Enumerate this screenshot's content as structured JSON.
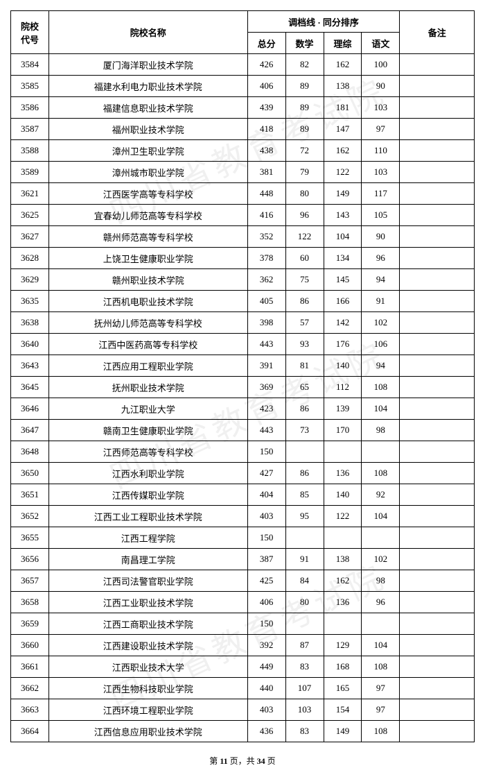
{
  "header": {
    "code": "院校\n代号",
    "name": "院校名称",
    "scoreGroup": "调档线 · 同分排序",
    "total": "总分",
    "math": "数学",
    "sci": "理综",
    "chinese": "语文",
    "remark": "备注"
  },
  "rows": [
    {
      "code": "3584",
      "name": "厦门海洋职业技术学院",
      "total": "426",
      "math": "82",
      "sci": "162",
      "chinese": "100",
      "remark": ""
    },
    {
      "code": "3585",
      "name": "福建水利电力职业技术学院",
      "total": "406",
      "math": "89",
      "sci": "138",
      "chinese": "90",
      "remark": ""
    },
    {
      "code": "3586",
      "name": "福建信息职业技术学院",
      "total": "439",
      "math": "89",
      "sci": "181",
      "chinese": "103",
      "remark": ""
    },
    {
      "code": "3587",
      "name": "福州职业技术学院",
      "total": "418",
      "math": "89",
      "sci": "147",
      "chinese": "97",
      "remark": ""
    },
    {
      "code": "3588",
      "name": "漳州卫生职业学院",
      "total": "438",
      "math": "72",
      "sci": "162",
      "chinese": "110",
      "remark": ""
    },
    {
      "code": "3589",
      "name": "漳州城市职业学院",
      "total": "381",
      "math": "79",
      "sci": "122",
      "chinese": "103",
      "remark": ""
    },
    {
      "code": "3621",
      "name": "江西医学高等专科学校",
      "total": "448",
      "math": "80",
      "sci": "149",
      "chinese": "117",
      "remark": ""
    },
    {
      "code": "3625",
      "name": "宜春幼儿师范高等专科学校",
      "total": "416",
      "math": "96",
      "sci": "143",
      "chinese": "105",
      "remark": ""
    },
    {
      "code": "3627",
      "name": "赣州师范高等专科学校",
      "total": "352",
      "math": "122",
      "sci": "104",
      "chinese": "90",
      "remark": ""
    },
    {
      "code": "3628",
      "name": "上饶卫生健康职业学院",
      "total": "378",
      "math": "60",
      "sci": "134",
      "chinese": "96",
      "remark": ""
    },
    {
      "code": "3629",
      "name": "赣州职业技术学院",
      "total": "362",
      "math": "75",
      "sci": "145",
      "chinese": "94",
      "remark": ""
    },
    {
      "code": "3635",
      "name": "江西机电职业技术学院",
      "total": "405",
      "math": "86",
      "sci": "166",
      "chinese": "91",
      "remark": ""
    },
    {
      "code": "3638",
      "name": "抚州幼儿师范高等专科学校",
      "total": "398",
      "math": "57",
      "sci": "142",
      "chinese": "102",
      "remark": ""
    },
    {
      "code": "3640",
      "name": "江西中医药高等专科学校",
      "total": "443",
      "math": "93",
      "sci": "176",
      "chinese": "106",
      "remark": ""
    },
    {
      "code": "3643",
      "name": "江西应用工程职业学院",
      "total": "391",
      "math": "81",
      "sci": "140",
      "chinese": "94",
      "remark": ""
    },
    {
      "code": "3645",
      "name": "抚州职业技术学院",
      "total": "369",
      "math": "65",
      "sci": "112",
      "chinese": "108",
      "remark": ""
    },
    {
      "code": "3646",
      "name": "九江职业大学",
      "total": "423",
      "math": "86",
      "sci": "139",
      "chinese": "104",
      "remark": ""
    },
    {
      "code": "3647",
      "name": "赣南卫生健康职业学院",
      "total": "443",
      "math": "73",
      "sci": "170",
      "chinese": "98",
      "remark": ""
    },
    {
      "code": "3648",
      "name": "江西师范高等专科学校",
      "total": "150",
      "math": "",
      "sci": "",
      "chinese": "",
      "remark": ""
    },
    {
      "code": "3650",
      "name": "江西水利职业学院",
      "total": "427",
      "math": "86",
      "sci": "136",
      "chinese": "108",
      "remark": ""
    },
    {
      "code": "3651",
      "name": "江西传媒职业学院",
      "total": "404",
      "math": "85",
      "sci": "140",
      "chinese": "92",
      "remark": ""
    },
    {
      "code": "3652",
      "name": "江西工业工程职业技术学院",
      "total": "403",
      "math": "95",
      "sci": "122",
      "chinese": "104",
      "remark": ""
    },
    {
      "code": "3655",
      "name": "江西工程学院",
      "total": "150",
      "math": "",
      "sci": "",
      "chinese": "",
      "remark": ""
    },
    {
      "code": "3656",
      "name": "南昌理工学院",
      "total": "387",
      "math": "91",
      "sci": "138",
      "chinese": "102",
      "remark": ""
    },
    {
      "code": "3657",
      "name": "江西司法警官职业学院",
      "total": "425",
      "math": "84",
      "sci": "162",
      "chinese": "98",
      "remark": ""
    },
    {
      "code": "3658",
      "name": "江西工业职业技术学院",
      "total": "406",
      "math": "80",
      "sci": "136",
      "chinese": "96",
      "remark": ""
    },
    {
      "code": "3659",
      "name": "江西工商职业技术学院",
      "total": "150",
      "math": "",
      "sci": "",
      "chinese": "",
      "remark": ""
    },
    {
      "code": "3660",
      "name": "江西建设职业技术学院",
      "total": "392",
      "math": "87",
      "sci": "129",
      "chinese": "104",
      "remark": ""
    },
    {
      "code": "3661",
      "name": "江西职业技术大学",
      "total": "449",
      "math": "83",
      "sci": "168",
      "chinese": "108",
      "remark": ""
    },
    {
      "code": "3662",
      "name": "江西生物科技职业学院",
      "total": "440",
      "math": "107",
      "sci": "165",
      "chinese": "97",
      "remark": ""
    },
    {
      "code": "3663",
      "name": "江西环境工程职业学院",
      "total": "403",
      "math": "103",
      "sci": "154",
      "chinese": "97",
      "remark": ""
    },
    {
      "code": "3664",
      "name": "江西信息应用职业技术学院",
      "total": "436",
      "math": "83",
      "sci": "149",
      "chinese": "108",
      "remark": ""
    }
  ],
  "pager": {
    "current": "11",
    "total": "34",
    "prefix": "第 ",
    "mid": " 页，共 ",
    "suffix": " 页"
  },
  "watermark": "四川省教育考试院"
}
